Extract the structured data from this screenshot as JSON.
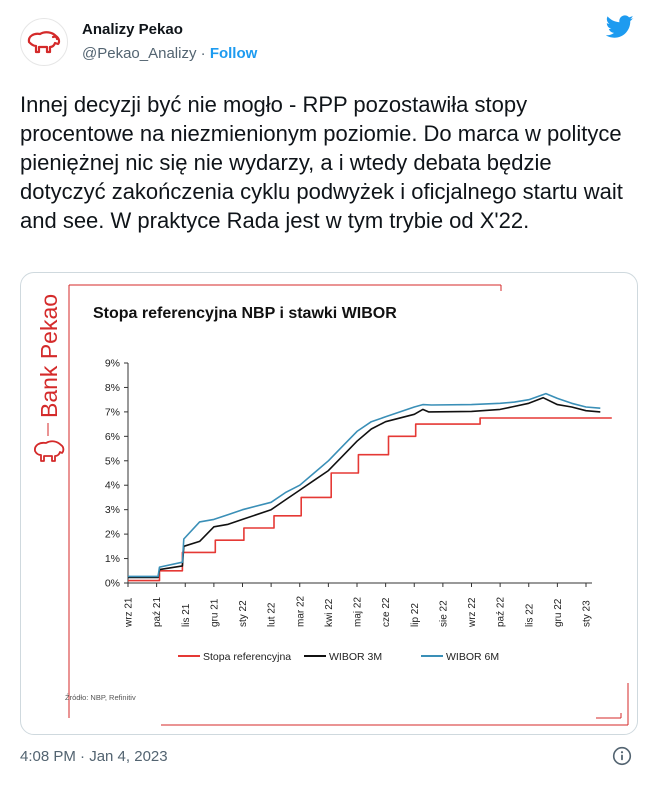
{
  "tweet": {
    "author_name": "Analizy Pekao",
    "handle": "@Pekao_Analizy",
    "separator": "·",
    "follow_label": "Follow",
    "text": "Innej decyzji być nie mogło - RPP pozostawiła stopy procentowe na niezmienionym poziomie. Do marca w polityce pieniężnej nic się nie wydarzy, a i wtedy debata będzie dotyczyć zakończenia cyklu podwyżek i oficjalnego startu wait and see. W praktyce Rada jest w tym trybie od X'22.",
    "timestamp": "4:08 PM · Jan 4, 2023"
  },
  "icons": {
    "avatar": "bison-logo",
    "brand": "twitter-bird-icon",
    "info": "info-icon"
  },
  "colors": {
    "accent": "#1d9bf0",
    "brand_red": "#d42a2a"
  },
  "card": {
    "brand": "Bank Pekao",
    "source": "Źródło: NBP, Refinitiv"
  },
  "chart_data": {
    "type": "line",
    "title": "Stopa referencyjna NBP i stawki WIBOR",
    "xlabel": "",
    "ylabel": "",
    "x_ticks": [
      "wrz 21",
      "paź 21",
      "lis 21",
      "gru 21",
      "sty 22",
      "lut 22",
      "mar 22",
      "kwi 22",
      "maj 22",
      "cze 22",
      "lip 22",
      "sie 22",
      "wrz 22",
      "paź 22",
      "lis 22",
      "gru 22",
      "sty 23"
    ],
    "y_ticks": [
      "0%",
      "1%",
      "2%",
      "3%",
      "4%",
      "5%",
      "6%",
      "7%",
      "8%",
      "9%"
    ],
    "ylim": [
      0,
      9
    ],
    "grid": false,
    "legend_position": "bottom",
    "series": [
      {
        "name": "Stopa referencyjna",
        "color": "#e53935",
        "step": true,
        "points": [
          [
            0,
            0.1
          ],
          [
            1.1,
            0.1
          ],
          [
            1.1,
            0.5
          ],
          [
            1.9,
            0.5
          ],
          [
            1.9,
            1.25
          ],
          [
            3.05,
            1.25
          ],
          [
            3.05,
            1.75
          ],
          [
            4.05,
            1.75
          ],
          [
            4.05,
            2.25
          ],
          [
            5.1,
            2.25
          ],
          [
            5.1,
            2.75
          ],
          [
            6.05,
            2.75
          ],
          [
            6.05,
            3.5
          ],
          [
            7.1,
            3.5
          ],
          [
            7.1,
            4.5
          ],
          [
            8.05,
            4.5
          ],
          [
            8.05,
            5.25
          ],
          [
            9.1,
            5.25
          ],
          [
            9.1,
            6.0
          ],
          [
            10.05,
            6.0
          ],
          [
            10.05,
            6.5
          ],
          [
            12.3,
            6.5
          ],
          [
            12.3,
            6.75
          ],
          [
            16.9,
            6.75
          ]
        ]
      },
      {
        "name": "WIBOR 3M",
        "color": "#111111",
        "step": false,
        "points": [
          [
            0,
            0.23
          ],
          [
            1.05,
            0.23
          ],
          [
            1.1,
            0.55
          ],
          [
            1.9,
            0.7
          ],
          [
            1.95,
            1.5
          ],
          [
            2.5,
            1.7
          ],
          [
            3.0,
            2.3
          ],
          [
            3.5,
            2.4
          ],
          [
            4.0,
            2.6
          ],
          [
            5.0,
            3.0
          ],
          [
            5.5,
            3.4
          ],
          [
            6.0,
            3.8
          ],
          [
            6.5,
            4.2
          ],
          [
            7.0,
            4.6
          ],
          [
            7.5,
            5.2
          ],
          [
            8.0,
            5.8
          ],
          [
            8.5,
            6.3
          ],
          [
            9.0,
            6.6
          ],
          [
            10.0,
            6.9
          ],
          [
            10.3,
            7.1
          ],
          [
            10.5,
            7.0
          ],
          [
            12.0,
            7.02
          ],
          [
            13.0,
            7.1
          ],
          [
            13.4,
            7.2
          ],
          [
            14.0,
            7.35
          ],
          [
            14.5,
            7.58
          ],
          [
            15.0,
            7.3
          ],
          [
            15.5,
            7.2
          ],
          [
            16.0,
            7.05
          ],
          [
            16.5,
            7.0
          ]
        ]
      },
      {
        "name": "WIBOR 6M",
        "color": "#3a8fb7",
        "step": false,
        "points": [
          [
            0,
            0.27
          ],
          [
            1.05,
            0.27
          ],
          [
            1.1,
            0.65
          ],
          [
            1.9,
            0.85
          ],
          [
            1.95,
            1.8
          ],
          [
            2.5,
            2.5
          ],
          [
            3.0,
            2.6
          ],
          [
            3.5,
            2.8
          ],
          [
            4.0,
            3.0
          ],
          [
            5.0,
            3.3
          ],
          [
            5.5,
            3.7
          ],
          [
            6.0,
            4.0
          ],
          [
            6.5,
            4.5
          ],
          [
            7.0,
            5.0
          ],
          [
            7.5,
            5.6
          ],
          [
            8.0,
            6.2
          ],
          [
            8.5,
            6.6
          ],
          [
            9.0,
            6.8
          ],
          [
            10.0,
            7.2
          ],
          [
            10.3,
            7.3
          ],
          [
            10.6,
            7.28
          ],
          [
            12.0,
            7.3
          ],
          [
            13.0,
            7.35
          ],
          [
            13.5,
            7.4
          ],
          [
            14.0,
            7.5
          ],
          [
            14.6,
            7.75
          ],
          [
            15.0,
            7.55
          ],
          [
            15.5,
            7.35
          ],
          [
            16.0,
            7.2
          ],
          [
            16.5,
            7.15
          ]
        ]
      }
    ]
  }
}
